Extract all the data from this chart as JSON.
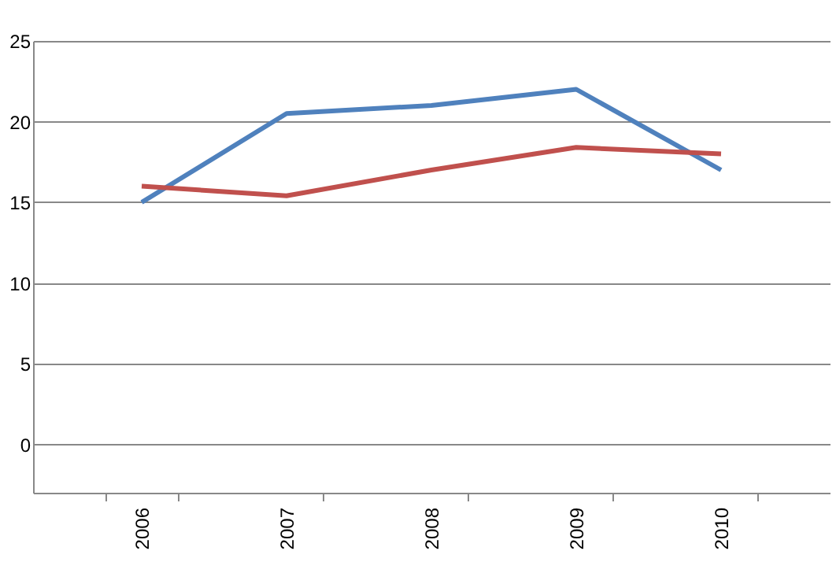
{
  "chart_data": {
    "type": "line",
    "categories": [
      "2006",
      "2007",
      "2008",
      "2009",
      "2010"
    ],
    "series": [
      {
        "color": "#4f81bd",
        "values": [
          15,
          20.5,
          21,
          22,
          17
        ]
      },
      {
        "color": "#c0504d",
        "values": [
          16,
          15.4,
          17,
          18.4,
          18
        ]
      }
    ],
    "ylim": [
      -3,
      25
    ],
    "yticks": [
      0,
      5,
      10,
      15,
      20,
      25
    ],
    "grid": "y",
    "marker": "none",
    "line_style": "solid"
  }
}
